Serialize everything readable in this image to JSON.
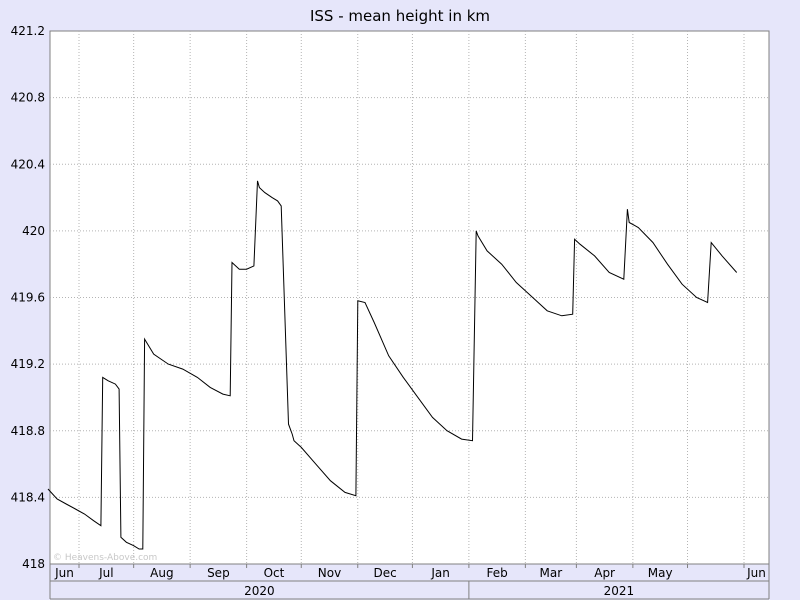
{
  "chart_data": {
    "type": "line",
    "title": "ISS - mean height in km",
    "xlabel": "",
    "ylabel": "",
    "ylim": [
      418,
      421.2
    ],
    "y_ticks": [
      "418",
      "418.4",
      "418.8",
      "419.2",
      "419.6",
      "420",
      "420.4",
      "420.8",
      "421.2"
    ],
    "x_ticks": [
      "Jun",
      "Jul",
      "Aug",
      "Sep",
      "Oct",
      "Nov",
      "Dec",
      "Jan",
      "Feb",
      "Mar",
      "Apr",
      "May",
      "Jun"
    ],
    "year_labels": [
      "2020",
      "2021"
    ],
    "grid": true,
    "watermark": "© Heavens-Above.com",
    "line_color": "#000000",
    "background_color": "#e6e6fa",
    "plot_background": "#ffffff",
    "series": [
      {
        "x": [
          "2020-05-15",
          "2020-05-20",
          "2020-05-25",
          "2020-05-30",
          "2020-06-04",
          "2020-06-09",
          "2020-06-13",
          "2020-06-14",
          "2020-06-17",
          "2020-06-21",
          "2020-06-23",
          "2020-06-24",
          "2020-06-27",
          "2020-07-01",
          "2020-07-04",
          "2020-07-06",
          "2020-07-07",
          "2020-07-12",
          "2020-07-20",
          "2020-07-28",
          "2020-08-05",
          "2020-08-12",
          "2020-08-19",
          "2020-08-23",
          "2020-08-24",
          "2020-08-28",
          "2020-09-01",
          "2020-09-05",
          "2020-09-07",
          "2020-09-08",
          "2020-09-11",
          "2020-09-15",
          "2020-09-18",
          "2020-09-20",
          "2020-09-24",
          "2020-09-26",
          "2020-09-27",
          "2020-10-01",
          "2020-10-09",
          "2020-10-17",
          "2020-10-25",
          "2020-10-31",
          "2020-11-01",
          "2020-11-05",
          "2020-11-10",
          "2020-11-18",
          "2020-11-26",
          "2020-12-04",
          "2020-12-12",
          "2020-12-20",
          "2020-12-28",
          "2021-01-03",
          "2021-01-05",
          "2021-01-06",
          "2021-01-11",
          "2021-01-19",
          "2021-01-27",
          "2021-02-05",
          "2021-02-13",
          "2021-02-21",
          "2021-02-27",
          "2021-02-28",
          "2021-03-03",
          "2021-03-11",
          "2021-03-19",
          "2021-03-27",
          "2021-03-29",
          "2021-03-30",
          "2021-04-04",
          "2021-04-12",
          "2021-04-20",
          "2021-04-28",
          "2021-05-06",
          "2021-05-12",
          "2021-05-14",
          "2021-05-20",
          "2021-05-28"
        ],
        "values": [
          418.45,
          418.39,
          418.36,
          418.33,
          418.3,
          418.26,
          418.23,
          419.12,
          419.1,
          419.08,
          419.05,
          418.16,
          418.13,
          418.11,
          418.09,
          418.09,
          419.35,
          419.26,
          419.2,
          419.17,
          419.12,
          419.06,
          419.02,
          419.01,
          419.81,
          419.77,
          419.77,
          419.79,
          420.3,
          420.26,
          420.23,
          420.2,
          420.18,
          420.15,
          418.84,
          418.78,
          418.74,
          418.7,
          418.6,
          418.5,
          418.43,
          418.41,
          419.58,
          419.57,
          419.45,
          419.25,
          419.12,
          419.0,
          418.88,
          418.8,
          418.75,
          418.74,
          420.0,
          419.97,
          419.88,
          419.8,
          419.69,
          419.6,
          419.52,
          419.49,
          419.5,
          419.95,
          419.92,
          419.85,
          419.75,
          419.71,
          420.13,
          420.05,
          420.02,
          419.93,
          419.8,
          419.68,
          419.6,
          419.57,
          419.93,
          419.85,
          419.75
        ]
      }
    ]
  }
}
